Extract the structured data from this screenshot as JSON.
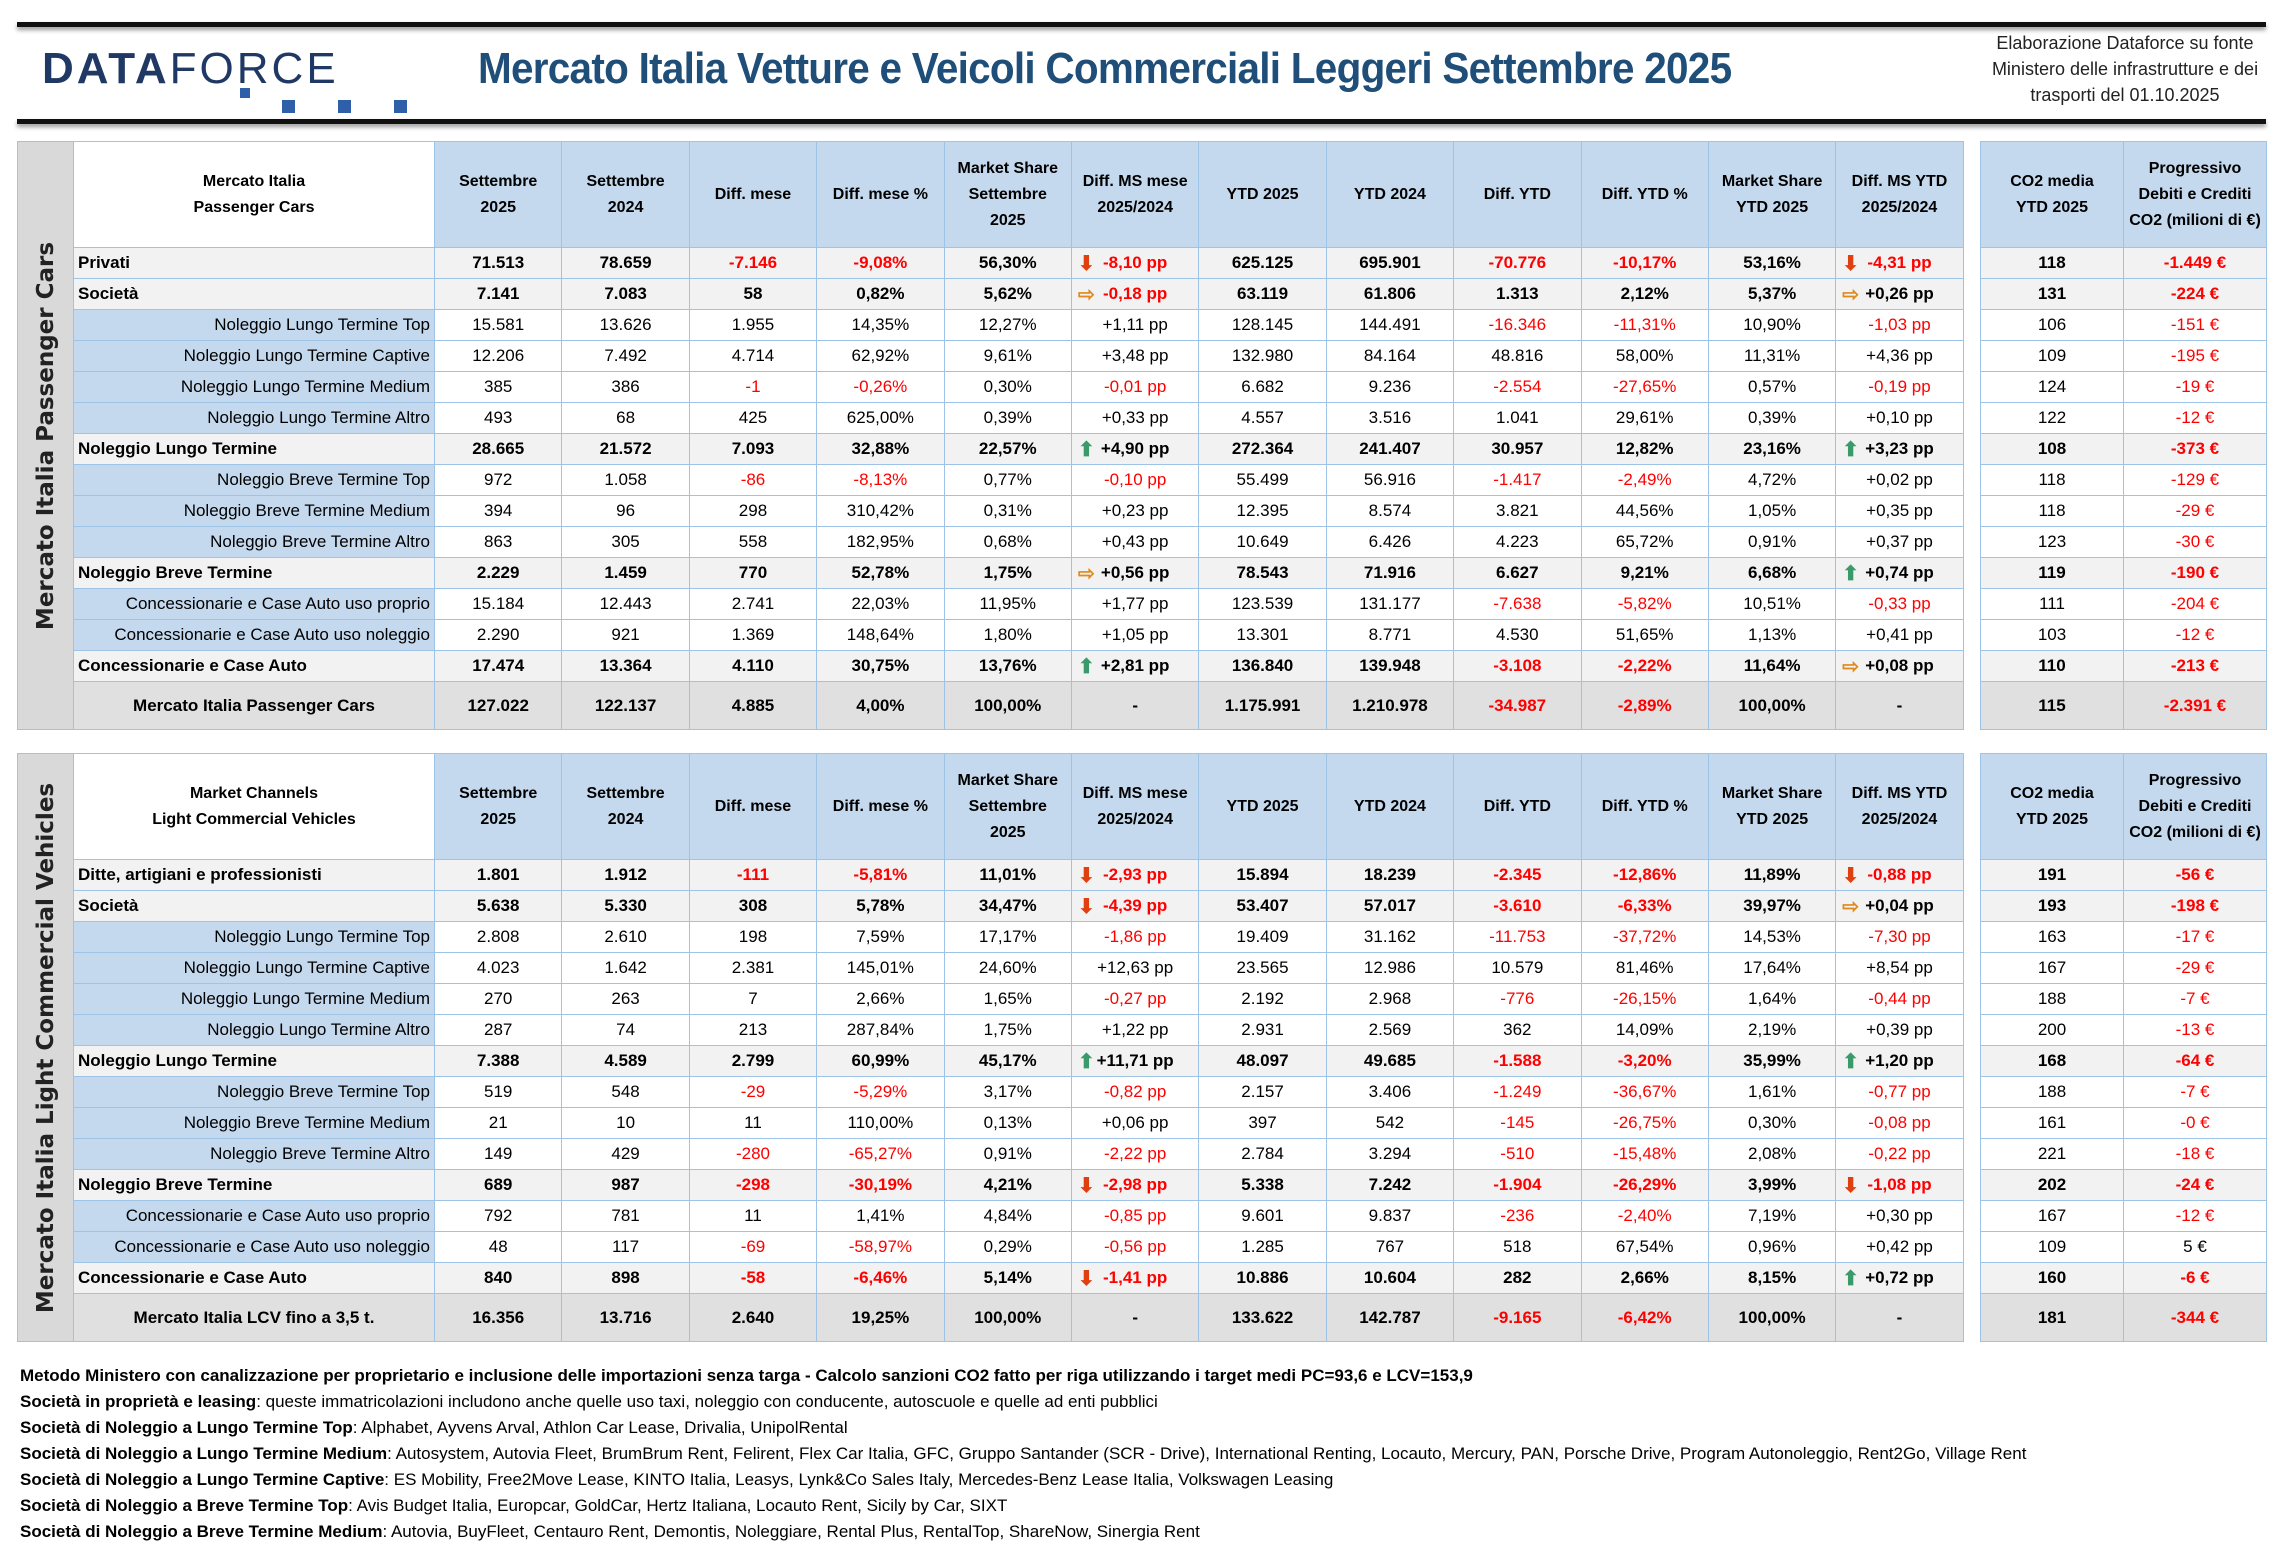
{
  "header": {
    "logo": "DATAFORCE",
    "title": "Mercato Italia Vetture e Veicoli Commerciali Leggeri Settembre 2025",
    "source": "Elaborazione Dataforce su fonte Ministero delle infrastrutture e dei trasporti del 01.10.2025"
  },
  "columns": [
    "Settembre\n2025",
    "Settembre\n2024",
    "Diff. mese",
    "Diff. mese %",
    "Market Share\nSettembre\n2025",
    "Diff. MS mese\n2025/2024",
    "YTD 2025",
    "YTD 2024",
    "Diff. YTD",
    "Diff. YTD %",
    "Market Share\nYTD 2025",
    "Diff. MS YTD\n2025/2024"
  ],
  "co2_columns": [
    "CO2 media\nYTD 2025",
    "Progressivo\nDebiti e Crediti\nCO2 (milioni di €)"
  ],
  "colors": {
    "header_blue": "#c5d9ee",
    "negative": "#ff0000",
    "title": "#1f4e79"
  },
  "tables": [
    {
      "side_label": "Mercato Italia Passenger Cars",
      "corner": "Mercato Italia\nPassenger Cars",
      "rows": [
        {
          "label": "Privati",
          "type": "b",
          "v": [
            "71.513",
            "78.659",
            "-7.146",
            "-9,08%",
            "56,30%",
            "-8,10 pp",
            "625.125",
            "695.901",
            "-70.776",
            "-10,17%",
            "53,16%",
            "-4,31 pp"
          ],
          "co2": [
            "118",
            "-1.449 €"
          ],
          "arrows": [
            "down",
            "down"
          ]
        },
        {
          "label": "Società",
          "type": "b",
          "v": [
            "7.141",
            "7.083",
            "58",
            "0,82%",
            "5,62%",
            "-0,18 pp",
            "63.119",
            "61.806",
            "1.313",
            "2,12%",
            "5,37%",
            "+0,26 pp"
          ],
          "co2": [
            "131",
            "-224 €"
          ],
          "arrows": [
            "right",
            "right"
          ]
        },
        {
          "label": "Noleggio Lungo Termine Top",
          "type": "s",
          "v": [
            "15.581",
            "13.626",
            "1.955",
            "14,35%",
            "12,27%",
            "+1,11 pp",
            "128.145",
            "144.491",
            "-16.346",
            "-11,31%",
            "10,90%",
            "-1,03 pp"
          ],
          "co2": [
            "106",
            "-151 €"
          ]
        },
        {
          "label": "Noleggio Lungo Termine Captive",
          "type": "s",
          "v": [
            "12.206",
            "7.492",
            "4.714",
            "62,92%",
            "9,61%",
            "+3,48 pp",
            "132.980",
            "84.164",
            "48.816",
            "58,00%",
            "11,31%",
            "+4,36 pp"
          ],
          "co2": [
            "109",
            "-195 €"
          ]
        },
        {
          "label": "Noleggio Lungo Termine Medium",
          "type": "s",
          "v": [
            "385",
            "386",
            "-1",
            "-0,26%",
            "0,30%",
            "-0,01 pp",
            "6.682",
            "9.236",
            "-2.554",
            "-27,65%",
            "0,57%",
            "-0,19 pp"
          ],
          "co2": [
            "124",
            "-19 €"
          ]
        },
        {
          "label": "Noleggio Lungo Termine Altro",
          "type": "s",
          "v": [
            "493",
            "68",
            "425",
            "625,00%",
            "0,39%",
            "+0,33 pp",
            "4.557",
            "3.516",
            "1.041",
            "29,61%",
            "0,39%",
            "+0,10 pp"
          ],
          "co2": [
            "122",
            "-12 €"
          ]
        },
        {
          "label": "Noleggio Lungo Termine",
          "type": "b",
          "v": [
            "28.665",
            "21.572",
            "7.093",
            "32,88%",
            "22,57%",
            "+4,90 pp",
            "272.364",
            "241.407",
            "30.957",
            "12,82%",
            "23,16%",
            "+3,23 pp"
          ],
          "co2": [
            "108",
            "-373 €"
          ],
          "arrows": [
            "up",
            "up"
          ]
        },
        {
          "label": "Noleggio Breve Termine Top",
          "type": "s",
          "v": [
            "972",
            "1.058",
            "-86",
            "-8,13%",
            "0,77%",
            "-0,10 pp",
            "55.499",
            "56.916",
            "-1.417",
            "-2,49%",
            "4,72%",
            "+0,02 pp"
          ],
          "co2": [
            "118",
            "-129 €"
          ]
        },
        {
          "label": "Noleggio Breve Termine Medium",
          "type": "s",
          "v": [
            "394",
            "96",
            "298",
            "310,42%",
            "0,31%",
            "+0,23 pp",
            "12.395",
            "8.574",
            "3.821",
            "44,56%",
            "1,05%",
            "+0,35 pp"
          ],
          "co2": [
            "118",
            "-29 €"
          ]
        },
        {
          "label": "Noleggio Breve Termine Altro",
          "type": "s",
          "v": [
            "863",
            "305",
            "558",
            "182,95%",
            "0,68%",
            "+0,43 pp",
            "10.649",
            "6.426",
            "4.223",
            "65,72%",
            "0,91%",
            "+0,37 pp"
          ],
          "co2": [
            "123",
            "-30 €"
          ]
        },
        {
          "label": "Noleggio Breve Termine",
          "type": "b",
          "v": [
            "2.229",
            "1.459",
            "770",
            "52,78%",
            "1,75%",
            "+0,56 pp",
            "78.543",
            "71.916",
            "6.627",
            "9,21%",
            "6,68%",
            "+0,74 pp"
          ],
          "co2": [
            "119",
            "-190 €"
          ],
          "arrows": [
            "right",
            "up"
          ]
        },
        {
          "label": "Concessionarie e Case Auto uso proprio",
          "type": "s",
          "v": [
            "15.184",
            "12.443",
            "2.741",
            "22,03%",
            "11,95%",
            "+1,77 pp",
            "123.539",
            "131.177",
            "-7.638",
            "-5,82%",
            "10,51%",
            "-0,33 pp"
          ],
          "co2": [
            "111",
            "-204 €"
          ]
        },
        {
          "label": "Concessionarie e Case Auto uso noleggio",
          "type": "s",
          "v": [
            "2.290",
            "921",
            "1.369",
            "148,64%",
            "1,80%",
            "+1,05 pp",
            "13.301",
            "8.771",
            "4.530",
            "51,65%",
            "1,13%",
            "+0,41 pp"
          ],
          "co2": [
            "103",
            "-12 €"
          ]
        },
        {
          "label": "Concessionarie e Case Auto",
          "type": "b",
          "v": [
            "17.474",
            "13.364",
            "4.110",
            "30,75%",
            "13,76%",
            "+2,81 pp",
            "136.840",
            "139.948",
            "-3.108",
            "-2,22%",
            "11,64%",
            "+0,08 pp"
          ],
          "co2": [
            "110",
            "-213 €"
          ],
          "arrows": [
            "up",
            "right"
          ]
        },
        {
          "label": "Mercato Italia Passenger Cars",
          "type": "t",
          "v": [
            "127.022",
            "122.137",
            "4.885",
            "4,00%",
            "100,00%",
            "-",
            "1.175.991",
            "1.210.978",
            "-34.987",
            "-2,89%",
            "100,00%",
            "-"
          ],
          "co2": [
            "115",
            "-2.391 €"
          ]
        }
      ]
    },
    {
      "side_label": "Mercato Italia Light Commercial Vehicles",
      "corner": "Market Channels\nLight Commercial Vehicles",
      "rows": [
        {
          "label": "Ditte, artigiani e professionisti",
          "type": "b",
          "v": [
            "1.801",
            "1.912",
            "-111",
            "-5,81%",
            "11,01%",
            "-2,93 pp",
            "15.894",
            "18.239",
            "-2.345",
            "-12,86%",
            "11,89%",
            "-0,88 pp"
          ],
          "co2": [
            "191",
            "-56 €"
          ],
          "arrows": [
            "down",
            "down"
          ]
        },
        {
          "label": "Società",
          "type": "b",
          "v": [
            "5.638",
            "5.330",
            "308",
            "5,78%",
            "34,47%",
            "-4,39 pp",
            "53.407",
            "57.017",
            "-3.610",
            "-6,33%",
            "39,97%",
            "+0,04 pp"
          ],
          "co2": [
            "193",
            "-198 €"
          ],
          "arrows": [
            "down",
            "right"
          ]
        },
        {
          "label": "Noleggio Lungo Termine Top",
          "type": "s",
          "v": [
            "2.808",
            "2.610",
            "198",
            "7,59%",
            "17,17%",
            "-1,86 pp",
            "19.409",
            "31.162",
            "-11.753",
            "-37,72%",
            "14,53%",
            "-7,30 pp"
          ],
          "co2": [
            "163",
            "-17 €"
          ]
        },
        {
          "label": "Noleggio Lungo Termine Captive",
          "type": "s",
          "v": [
            "4.023",
            "1.642",
            "2.381",
            "145,01%",
            "24,60%",
            "+12,63 pp",
            "23.565",
            "12.986",
            "10.579",
            "81,46%",
            "17,64%",
            "+8,54 pp"
          ],
          "co2": [
            "167",
            "-29 €"
          ]
        },
        {
          "label": "Noleggio Lungo Termine Medium",
          "type": "s",
          "v": [
            "270",
            "263",
            "7",
            "2,66%",
            "1,65%",
            "-0,27 pp",
            "2.192",
            "2.968",
            "-776",
            "-26,15%",
            "1,64%",
            "-0,44 pp"
          ],
          "co2": [
            "188",
            "-7 €"
          ]
        },
        {
          "label": "Noleggio Lungo Termine Altro",
          "type": "s",
          "v": [
            "287",
            "74",
            "213",
            "287,84%",
            "1,75%",
            "+1,22 pp",
            "2.931",
            "2.569",
            "362",
            "14,09%",
            "2,19%",
            "+0,39 pp"
          ],
          "co2": [
            "200",
            "-13 €"
          ]
        },
        {
          "label": "Noleggio Lungo Termine",
          "type": "b",
          "v": [
            "7.388",
            "4.589",
            "2.799",
            "60,99%",
            "45,17%",
            "+11,71 pp",
            "48.097",
            "49.685",
            "-1.588",
            "-3,20%",
            "35,99%",
            "+1,20 pp"
          ],
          "co2": [
            "168",
            "-64 €"
          ],
          "arrows": [
            "up",
            "up"
          ]
        },
        {
          "label": "Noleggio Breve Termine Top",
          "type": "s",
          "v": [
            "519",
            "548",
            "-29",
            "-5,29%",
            "3,17%",
            "-0,82 pp",
            "2.157",
            "3.406",
            "-1.249",
            "-36,67%",
            "1,61%",
            "-0,77 pp"
          ],
          "co2": [
            "188",
            "-7 €"
          ]
        },
        {
          "label": "Noleggio Breve Termine Medium",
          "type": "s",
          "v": [
            "21",
            "10",
            "11",
            "110,00%",
            "0,13%",
            "+0,06 pp",
            "397",
            "542",
            "-145",
            "-26,75%",
            "0,30%",
            "-0,08 pp"
          ],
          "co2": [
            "161",
            "-0 €"
          ]
        },
        {
          "label": "Noleggio Breve Termine Altro",
          "type": "s",
          "v": [
            "149",
            "429",
            "-280",
            "-65,27%",
            "0,91%",
            "-2,22 pp",
            "2.784",
            "3.294",
            "-510",
            "-15,48%",
            "2,08%",
            "-0,22 pp"
          ],
          "co2": [
            "221",
            "-18 €"
          ]
        },
        {
          "label": "Noleggio Breve Termine",
          "type": "b",
          "v": [
            "689",
            "987",
            "-298",
            "-30,19%",
            "4,21%",
            "-2,98 pp",
            "5.338",
            "7.242",
            "-1.904",
            "-26,29%",
            "3,99%",
            "-1,08 pp"
          ],
          "co2": [
            "202",
            "-24 €"
          ],
          "arrows": [
            "down",
            "down"
          ]
        },
        {
          "label": "Concessionarie e Case Auto uso proprio",
          "type": "s",
          "v": [
            "792",
            "781",
            "11",
            "1,41%",
            "4,84%",
            "-0,85 pp",
            "9.601",
            "9.837",
            "-236",
            "-2,40%",
            "7,19%",
            "+0,30 pp"
          ],
          "co2": [
            "167",
            "-12 €"
          ]
        },
        {
          "label": "Concessionarie e Case Auto uso noleggio",
          "type": "s",
          "v": [
            "48",
            "117",
            "-69",
            "-58,97%",
            "0,29%",
            "-0,56 pp",
            "1.285",
            "767",
            "518",
            "67,54%",
            "0,96%",
            "+0,42 pp"
          ],
          "co2": [
            "109",
            "5 €"
          ]
        },
        {
          "label": "Concessionarie e Case Auto",
          "type": "b",
          "v": [
            "840",
            "898",
            "-58",
            "-6,46%",
            "5,14%",
            "-1,41 pp",
            "10.886",
            "10.604",
            "282",
            "2,66%",
            "8,15%",
            "+0,72 pp"
          ],
          "co2": [
            "160",
            "-6 €"
          ],
          "arrows": [
            "down",
            "up"
          ]
        },
        {
          "label": "Mercato Italia LCV fino a 3,5 t.",
          "type": "t",
          "v": [
            "16.356",
            "13.716",
            "2.640",
            "19,25%",
            "100,00%",
            "-",
            "133.622",
            "142.787",
            "-9.165",
            "-6,42%",
            "100,00%",
            "-"
          ],
          "co2": [
            "181",
            "-344 €"
          ]
        }
      ]
    }
  ],
  "notes": [
    {
      "b": "Metodo Ministero con canalizzazione per proprietario e inclusione delle importazioni senza targa - Calcolo sanzioni CO2 fatto per riga utilizzando i target medi PC=93,6 e LCV=153,9",
      "t": ""
    },
    {
      "b": "Società in proprietà e leasing",
      "t": ": queste immatricolazioni includono anche quelle uso taxi, noleggio con conducente, autoscuole e quelle ad enti pubblici"
    },
    {
      "b": "Società di Noleggio a Lungo Termine Top",
      "t": ": Alphabet, Ayvens Arval, Athlon Car Lease, Drivalia, UnipolRental"
    },
    {
      "b": "Società di Noleggio a Lungo Termine Medium",
      "t": ": Autosystem, Autovia Fleet, BrumBrum Rent, Felirent, Flex Car Italia, GFC, Gruppo Santander (SCR - Drive), International Renting, Locauto, Mercury, PAN, Porsche Drive, Program Autonoleggio, Rent2Go, Village Rent"
    },
    {
      "b": "Società di Noleggio a Lungo Termine Captive",
      "t": ": ES Mobility, Free2Move Lease, KINTO Italia, Leasys, Lynk&Co Sales Italy, Mercedes-Benz Lease Italia, Volkswagen Leasing"
    },
    {
      "b": "Società di Noleggio a Breve Termine Top",
      "t": ": Avis Budget Italia, Europcar, GoldCar, Hertz Italiana, Locauto Rent, Sicily by Car, SIXT"
    },
    {
      "b": "Società di Noleggio a Breve Termine Medium",
      "t": ": Autovia, BuyFleet, Centauro Rent, Demontis, Noleggiare, Rental Plus, RentalTop, ShareNow, Sinergia Rent"
    }
  ]
}
